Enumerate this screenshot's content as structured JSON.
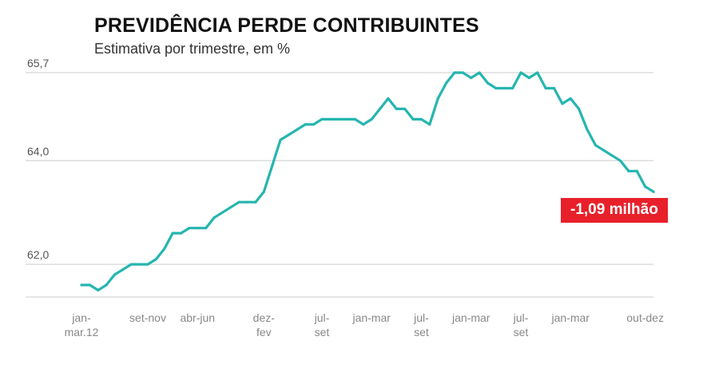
{
  "title": "PREVIDÊNCIA PERDE CONTRIBUINTES",
  "subtitle": "Estimativa por trimestre, em %",
  "callout": "-1,09 milhão",
  "colors": {
    "line": "#26b5b0",
    "callout": "#e8202a",
    "grid": "#dddddd"
  },
  "chart_data": {
    "type": "line",
    "title": "PREVIDÊNCIA PERDE CONTRIBUINTES",
    "subtitle": "Estimativa por trimestre, em %",
    "y_ticks": [
      {
        "value": 62.0,
        "label": "62,0"
      },
      {
        "value": 64.0,
        "label": "64,0"
      },
      {
        "value": 65.7,
        "label": "65,7"
      }
    ],
    "x_ticks": [
      {
        "index": 0,
        "lines": [
          "jan-",
          "mar.12"
        ]
      },
      {
        "index": 8,
        "lines": [
          "set-nov"
        ]
      },
      {
        "index": 14,
        "lines": [
          "abr-jun"
        ]
      },
      {
        "index": 22,
        "lines": [
          "dez-",
          "fev"
        ]
      },
      {
        "index": 29,
        "lines": [
          "jul-",
          "set"
        ]
      },
      {
        "index": 35,
        "lines": [
          "jan-mar"
        ]
      },
      {
        "index": 41,
        "lines": [
          "jul-",
          "set"
        ]
      },
      {
        "index": 47,
        "lines": [
          "jan-mar"
        ]
      },
      {
        "index": 53,
        "lines": [
          "jul-",
          "set"
        ]
      },
      {
        "index": 59,
        "lines": [
          "jan-mar"
        ]
      },
      {
        "index": 68,
        "lines": [
          "out-dez"
        ]
      }
    ],
    "ylim": [
      61.4,
      65.7
    ],
    "grid": true,
    "values": [
      61.6,
      61.6,
      61.5,
      61.6,
      61.8,
      61.9,
      62.0,
      62.0,
      62.0,
      62.1,
      62.3,
      62.6,
      62.6,
      62.7,
      62.7,
      62.7,
      62.9,
      63.0,
      63.1,
      63.2,
      63.2,
      63.2,
      63.4,
      63.9,
      64.4,
      64.5,
      64.6,
      64.7,
      64.7,
      64.8,
      64.8,
      64.8,
      64.8,
      64.8,
      64.7,
      64.8,
      65.0,
      65.2,
      65.0,
      65.0,
      64.8,
      64.8,
      64.7,
      65.2,
      65.5,
      65.7,
      65.7,
      65.6,
      65.7,
      65.5,
      65.4,
      65.4,
      65.4,
      65.7,
      65.6,
      65.7,
      65.4,
      65.4,
      65.1,
      65.2,
      65.0,
      64.6,
      64.3,
      64.2,
      64.1,
      64.0,
      63.8,
      63.8,
      63.5,
      63.4
    ]
  }
}
